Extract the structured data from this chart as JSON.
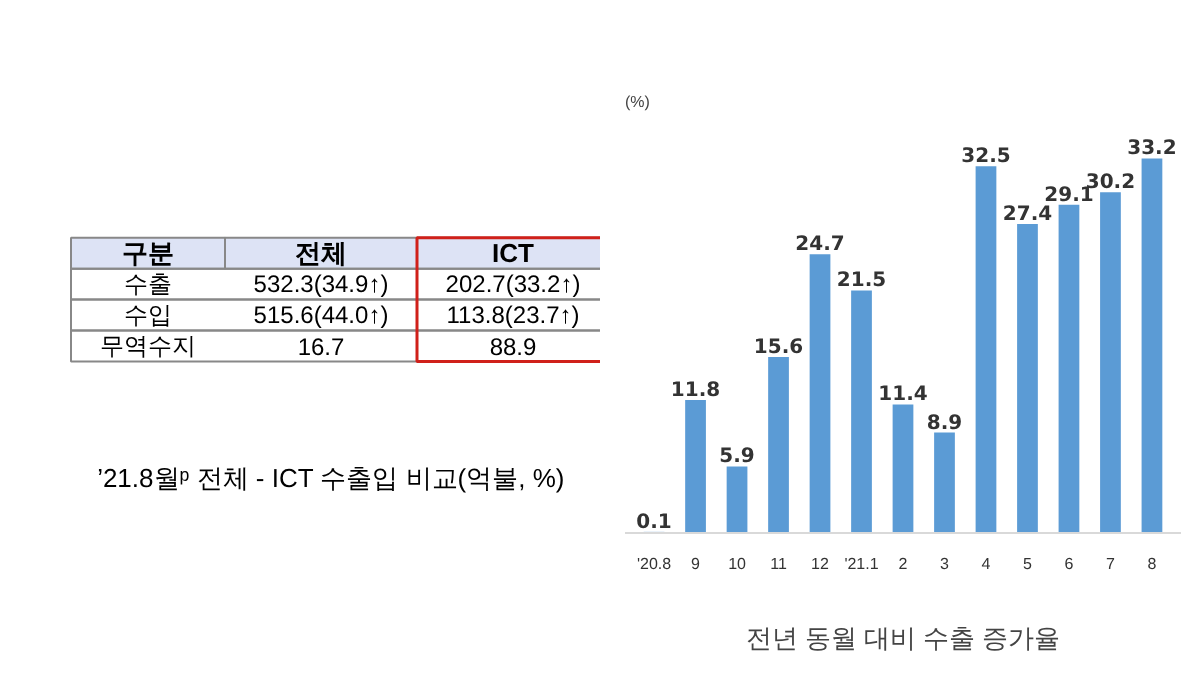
{
  "chart_data": [
    {
      "type": "other",
      "title": "’21.8월ᵖ 전체 - ICT 수출입 비교(억불, %)",
      "categories": [
        "구분",
        "전체",
        "ICT"
      ],
      "y_categories": [
        "수출",
        "수입",
        "무역수지"
      ],
      "cell_labels": [
        [
          "532.3(34.9↑)",
          "202.7(33.2↑)"
        ],
        [
          "515.6(44.0↑)",
          "113.8(23.7↑)"
        ],
        [
          "16.7",
          "88.9"
        ]
      ]
    },
    {
      "type": "bar",
      "title": "전년 동월 대비 수출 증가율",
      "ylabel": "(%)",
      "categories": [
        "'20.8",
        "9",
        "10",
        "11",
        "12",
        "'21.1",
        "2",
        "3",
        "4",
        "5",
        "6",
        "7",
        "8"
      ],
      "values": [
        0.1,
        11.8,
        5.9,
        15.6,
        24.7,
        21.5,
        11.4,
        8.9,
        32.5,
        27.4,
        29.1,
        30.2,
        33.2
      ],
      "color": "#5b9bd5",
      "data_labels": true
    }
  ]
}
